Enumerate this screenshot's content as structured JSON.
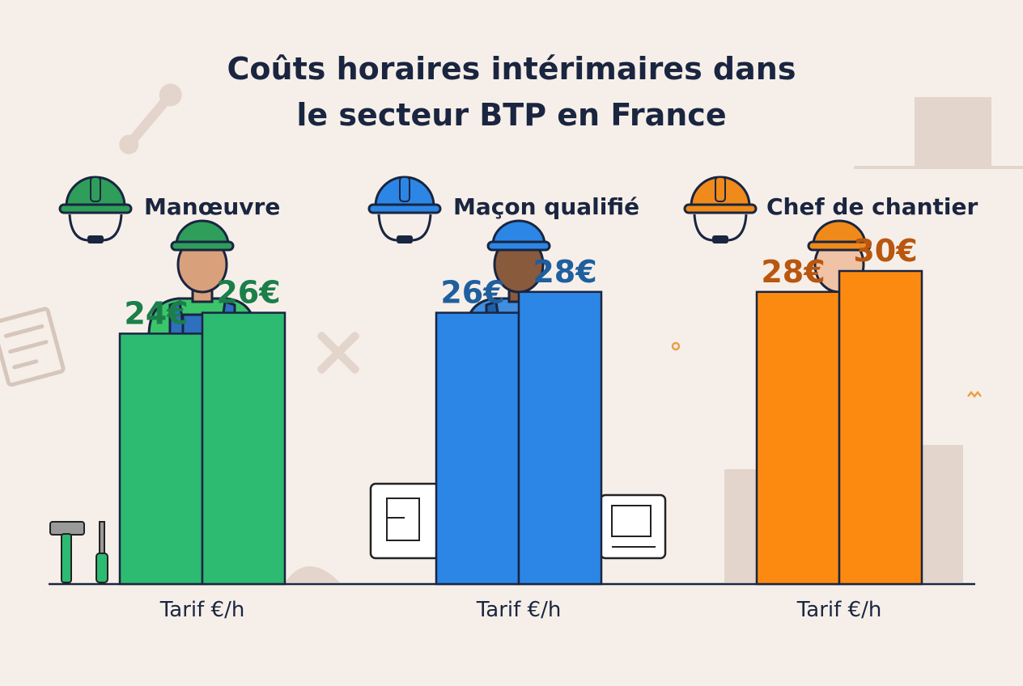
{
  "chart_data": {
    "type": "bar",
    "title_lines": [
      "Coûts horaires intérimaires dans",
      "le secteur BTP en France"
    ],
    "groups": [
      {
        "label": "Manœuvre",
        "xlabel": "Tarif €/h",
        "values": [
          24,
          26
        ],
        "value_labels": [
          "24€",
          "26€"
        ],
        "color": "#2dba71",
        "label_color": "#1b7f4a",
        "helmet_color": "#2e9e5a",
        "shirt_color": "#3cc46a",
        "overall_color": "#2f6fbf",
        "skin_color": "#d9a07c",
        "icon": "green-hard-hat-icon"
      },
      {
        "label": "Maçon qualifié",
        "xlabel": "Tarif €/h",
        "values": [
          26,
          28
        ],
        "value_labels": [
          "26€",
          "28€"
        ],
        "color": "#2c86e6",
        "label_color": "#1f5f9e",
        "helmet_color": "#2c86e6",
        "shirt_color": "#3f8ee0",
        "overall_color": "#1d5fa9",
        "skin_color": "#8a5a3c",
        "icon": "blue-hard-hat-icon"
      },
      {
        "label": "Chef de chantier",
        "xlabel": "Tarif €/h",
        "values": [
          28,
          30
        ],
        "value_labels": [
          "28€",
          "30€"
        ],
        "color": "#fd8a10",
        "label_color": "#b9560f",
        "helmet_color": "#f08a1a",
        "shirt_color": "#ffffff",
        "overall_color": "#f58a1f",
        "skin_color": "#f0c3a6",
        "icon": "orange-hard-hat-icon"
      }
    ],
    "ylim": [
      0,
      50
    ],
    "grid": false,
    "legend": "none"
  }
}
